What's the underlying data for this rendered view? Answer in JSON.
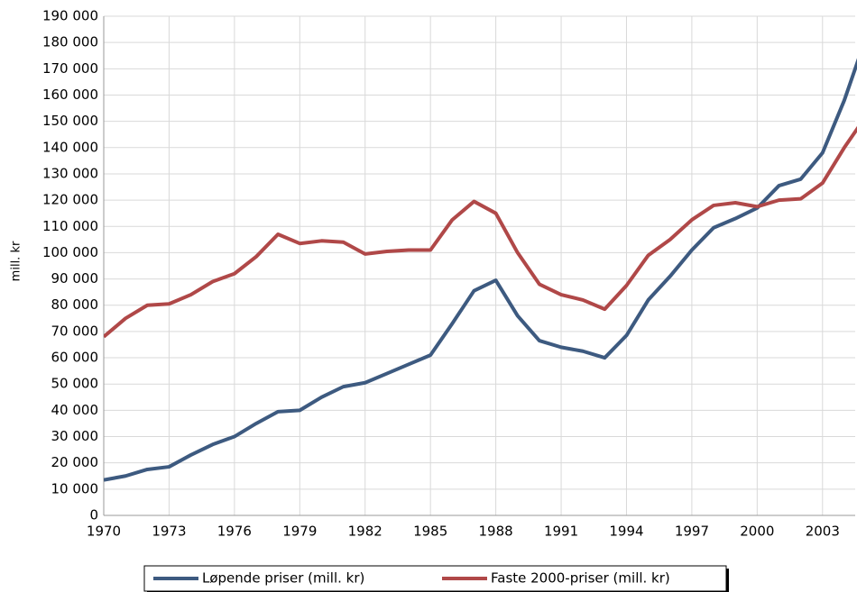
{
  "chart_data": {
    "type": "line",
    "y_label": "mill. kr",
    "x": [
      1970,
      1971,
      1972,
      1973,
      1974,
      1975,
      1976,
      1977,
      1978,
      1979,
      1980,
      1981,
      1982,
      1983,
      1984,
      1985,
      1986,
      1987,
      1988,
      1989,
      1990,
      1991,
      1992,
      1993,
      1994,
      1995,
      1996,
      1997,
      1998,
      1999,
      2000,
      2001,
      2002,
      2003,
      2004,
      2005
    ],
    "series": [
      {
        "name": "Løpende priser (mill. kr)",
        "color": "#3d5a80",
        "values": [
          13500,
          15000,
          17500,
          18500,
          23000,
          27000,
          30000,
          35000,
          39500,
          40000,
          45000,
          49000,
          50500,
          54000,
          57500,
          61000,
          73000,
          85500,
          89500,
          76000,
          66500,
          64000,
          62500,
          60000,
          68500,
          82000,
          91000,
          101000,
          109500,
          113000,
          117000,
          125500,
          128000,
          138000,
          158000,
          182000
        ]
      },
      {
        "name": "Faste 2000-priser (mill. kr)",
        "color": "#b04848",
        "values": [
          68000,
          75000,
          80000,
          80500,
          84000,
          89000,
          92000,
          98500,
          107000,
          103500,
          104500,
          104000,
          99500,
          100500,
          101000,
          101000,
          112500,
          119500,
          115000,
          100000,
          88000,
          84000,
          82000,
          78500,
          87500,
          99000,
          105000,
          112500,
          118000,
          119000,
          117500,
          120000,
          120500,
          126500,
          140000,
          152000
        ]
      }
    ],
    "xlim": [
      1970,
      2004.5
    ],
    "xticks": [
      1970,
      1973,
      1976,
      1979,
      1982,
      1985,
      1988,
      1991,
      1994,
      1997,
      2000,
      2003
    ],
    "ylim": [
      0,
      190000
    ],
    "yticks": [
      0,
      {
        "value": 10000,
        "label": "10 000"
      },
      {
        "value": 20000,
        "label": "20 000"
      },
      {
        "value": 30000,
        "label": "30 000"
      },
      {
        "value": 40000,
        "label": "40 000"
      },
      {
        "value": 50000,
        "label": "50 000"
      },
      {
        "value": 60000,
        "label": "60 000"
      },
      {
        "value": 70000,
        "label": "70 000"
      },
      {
        "value": 80000,
        "label": "80 000"
      },
      {
        "value": 90000,
        "label": "90 000"
      },
      {
        "value": 100000,
        "label": "100 000"
      },
      {
        "value": 110000,
        "label": "110 000"
      },
      {
        "value": 120000,
        "label": "120 000"
      },
      {
        "value": 130000,
        "label": "130 000"
      },
      {
        "value": 140000,
        "label": "140 000"
      },
      {
        "value": 150000,
        "label": "150 000"
      },
      {
        "value": 160000,
        "label": "160 000"
      },
      {
        "value": 170000,
        "label": "170 000"
      },
      {
        "value": 180000,
        "label": "180 000"
      },
      {
        "value": 190000,
        "label": "190 000"
      }
    ],
    "grid": true
  }
}
